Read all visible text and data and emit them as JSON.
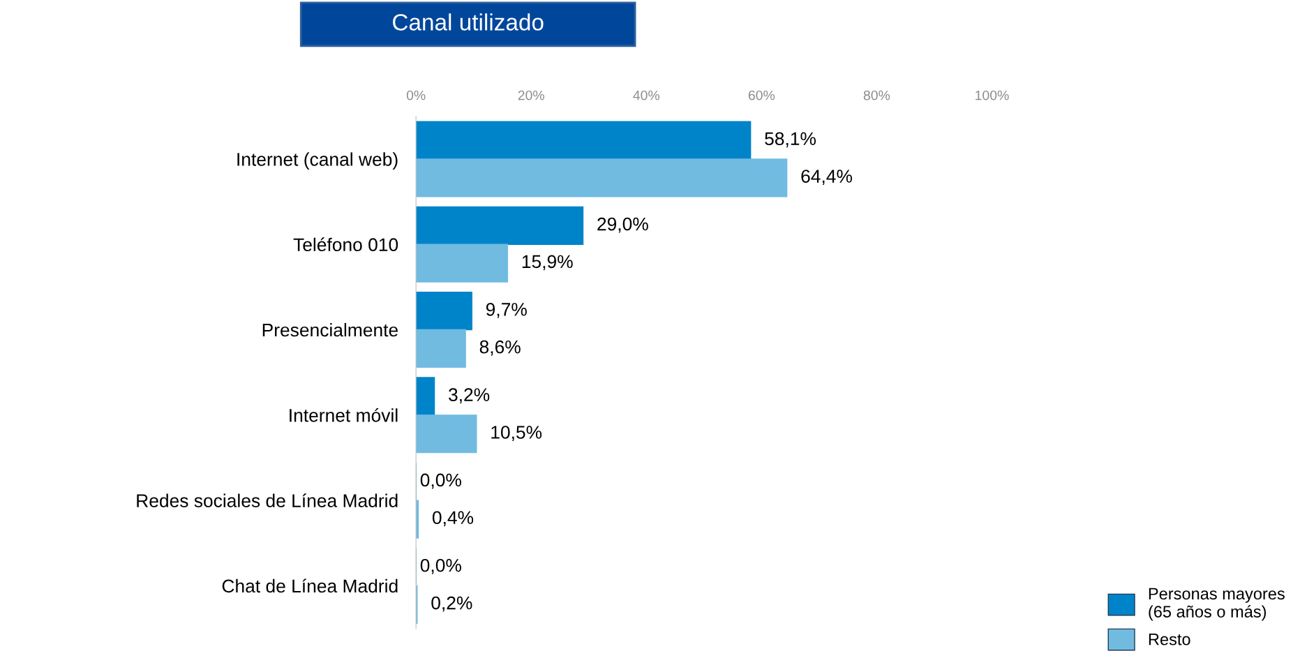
{
  "chart_data": {
    "type": "bar",
    "orientation": "horizontal",
    "title": "Canal utilizado",
    "categories": [
      "Internet (canal web)",
      "Teléfono 010",
      "Presencialmente",
      "Internet móvil",
      "Redes sociales de Línea Madrid",
      "Chat de Línea Madrid"
    ],
    "series": [
      {
        "name": "Personas mayores\n(65 años o más)",
        "color": "#0084c9",
        "values": [
          58.1,
          29.0,
          9.7,
          3.2,
          0.0,
          0.0
        ],
        "value_labels": [
          "58,1%",
          "29,0%",
          "9,7%",
          "3,2%",
          "0,0%",
          "0,0%"
        ]
      },
      {
        "name": "Resto",
        "color": "#71bbe1",
        "values": [
          64.4,
          15.9,
          8.6,
          10.5,
          0.4,
          0.2
        ],
        "value_labels": [
          "64,4%",
          "15,9%",
          "8,6%",
          "10,5%",
          "0,4%",
          "0,2%"
        ]
      }
    ],
    "xlim": [
      0,
      100
    ],
    "xticks": [
      {
        "value": 0,
        "label": "0%"
      },
      {
        "value": 20,
        "label": "20%"
      },
      {
        "value": 40,
        "label": "40%"
      },
      {
        "value": 60,
        "label": "60%"
      },
      {
        "value": 80,
        "label": "80%"
      },
      {
        "value": 100,
        "label": "100%"
      }
    ],
    "grid": false,
    "legend": "bottom right"
  }
}
